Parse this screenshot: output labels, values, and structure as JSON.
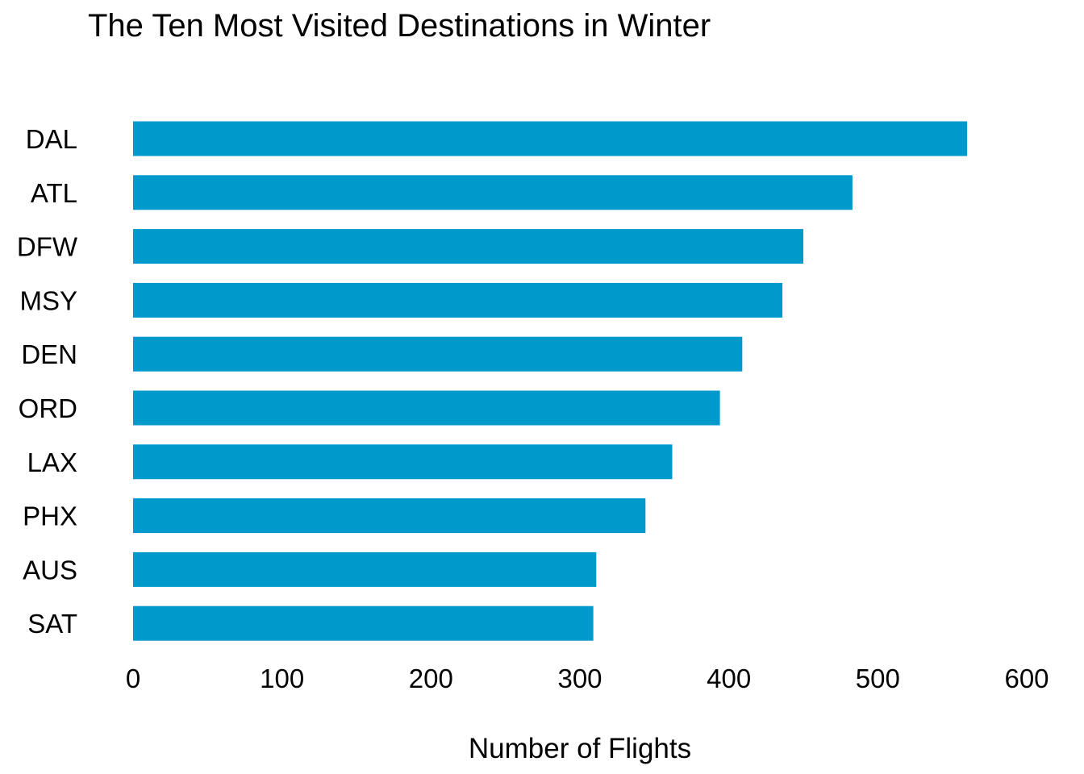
{
  "chart_data": {
    "type": "bar",
    "orientation": "horizontal",
    "title": "The Ten Most Visited Destinations in Winter",
    "xlabel": "Number of Flights",
    "ylabel": "",
    "categories": [
      "DAL",
      "ATL",
      "DFW",
      "MSY",
      "DEN",
      "ORD",
      "LAX",
      "PHX",
      "AUS",
      "SAT"
    ],
    "values": [
      560,
      483,
      450,
      436,
      409,
      394,
      362,
      344,
      311,
      309
    ],
    "xlim": [
      0,
      600
    ],
    "xticks": [
      "0",
      "100",
      "200",
      "300",
      "400",
      "500",
      "600"
    ],
    "bar_color": "#0099CC",
    "grid": false,
    "legend": "none"
  }
}
